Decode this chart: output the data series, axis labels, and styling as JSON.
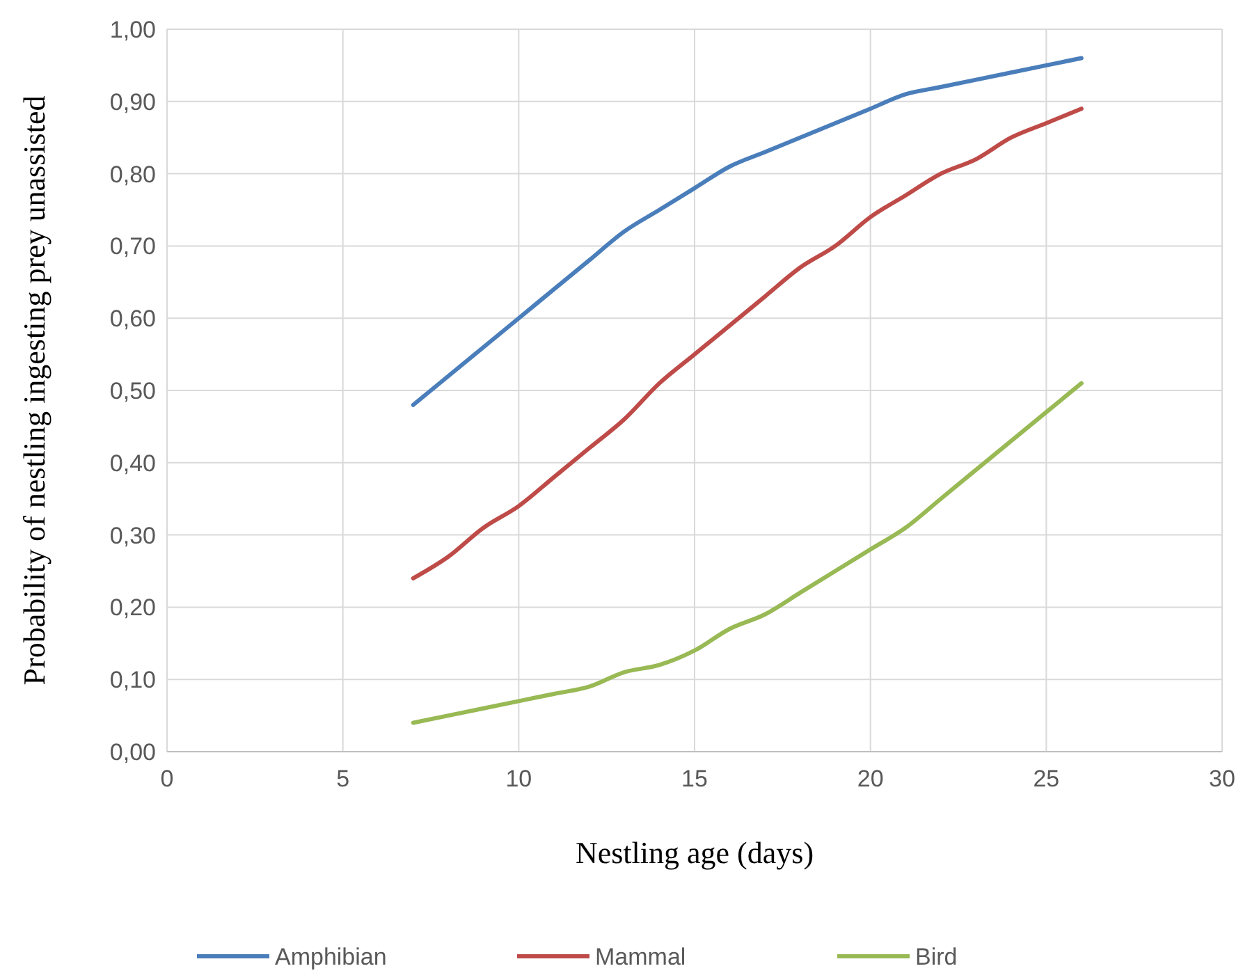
{
  "chart_data": {
    "type": "line",
    "xlabel": "Nestling age (days)",
    "ylabel": "Probability of nestling ingesting prey unassisted",
    "x": [
      7,
      8,
      9,
      10,
      11,
      12,
      13,
      14,
      15,
      16,
      17,
      18,
      19,
      20,
      21,
      22,
      23,
      24,
      25,
      26
    ],
    "series": [
      {
        "name": "Amphibian",
        "color": "#4a7ebb",
        "values": [
          0.48,
          0.52,
          0.56,
          0.6,
          0.64,
          0.68,
          0.72,
          0.75,
          0.78,
          0.81,
          0.83,
          0.85,
          0.87,
          0.89,
          0.91,
          0.92,
          0.93,
          0.94,
          0.95,
          0.96
        ]
      },
      {
        "name": "Mammal",
        "color": "#be4b48",
        "values": [
          0.24,
          0.27,
          0.31,
          0.34,
          0.38,
          0.42,
          0.46,
          0.51,
          0.55,
          0.59,
          0.63,
          0.67,
          0.7,
          0.74,
          0.77,
          0.8,
          0.82,
          0.85,
          0.87,
          0.89
        ]
      },
      {
        "name": "Bird",
        "color": "#98b954",
        "values": [
          0.04,
          0.05,
          0.06,
          0.07,
          0.08,
          0.09,
          0.11,
          0.12,
          0.14,
          0.17,
          0.19,
          0.22,
          0.25,
          0.28,
          0.31,
          0.35,
          0.39,
          0.43,
          0.47,
          0.51
        ]
      }
    ],
    "xlim": [
      0,
      30
    ],
    "xticks": [
      0,
      5,
      10,
      15,
      20,
      25,
      30
    ],
    "ylim": [
      0,
      1
    ],
    "yticks": [
      {
        "value": 0,
        "label": "0,00"
      },
      {
        "value": 0.1,
        "label": "0,10"
      },
      {
        "value": 0.2,
        "label": "0,20"
      },
      {
        "value": 0.3,
        "label": "0,30"
      },
      {
        "value": 0.4,
        "label": "0,40"
      },
      {
        "value": 0.5,
        "label": "0,50"
      },
      {
        "value": 0.6,
        "label": "0,60"
      },
      {
        "value": 0.7,
        "label": "0,70"
      },
      {
        "value": 0.8,
        "label": "0,80"
      },
      {
        "value": 0.9,
        "label": "0,90"
      },
      {
        "value": 1,
        "label": "1,00"
      }
    ],
    "grid": true,
    "legend": "bottom",
    "marker": "none",
    "line_style": "solid"
  }
}
